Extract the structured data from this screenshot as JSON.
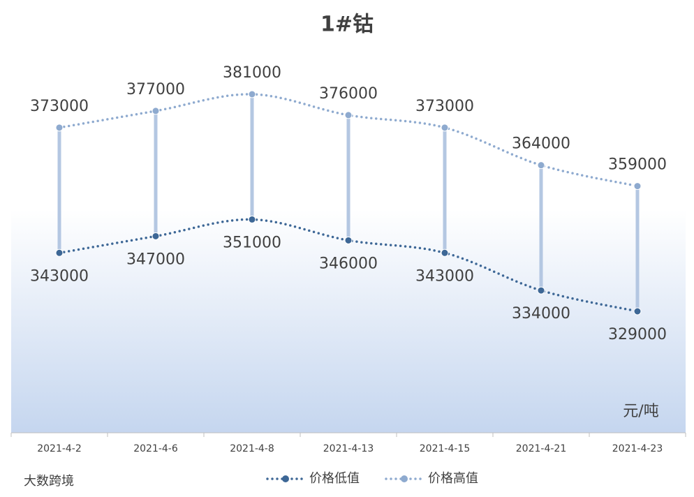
{
  "chart_data": {
    "type": "line",
    "title": "1#钴",
    "unit_label": "元/吨",
    "watermark": "大数跨境",
    "categories": [
      "2021-4-2",
      "2021-4-6",
      "2021-4-8",
      "2021-4-13",
      "2021-4-15",
      "2021-4-21",
      "2021-4-23"
    ],
    "series": [
      {
        "name": "价格低值",
        "color": "#3d6796",
        "values": [
          343000,
          347000,
          351000,
          346000,
          343000,
          334000,
          329000
        ]
      },
      {
        "name": "价格高值",
        "color": "#8eaacf",
        "values": [
          373000,
          377000,
          381000,
          376000,
          373000,
          364000,
          359000
        ]
      }
    ],
    "high_low_lines": true,
    "smooth": true,
    "legend": "bottom"
  }
}
